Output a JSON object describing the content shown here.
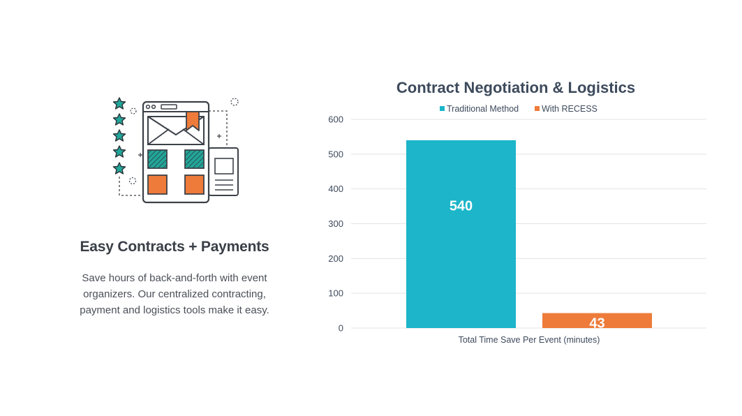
{
  "feature": {
    "icon": "contract-document-illustration",
    "title": "Easy Contracts + Payments",
    "description": "Save hours of back-and-forth with event organizers. Our centralized contracting, payment and logistics tools make it easy."
  },
  "colors": {
    "teal": "#1cb5c9",
    "orange": "#ee7b3a",
    "star_teal": "#22a699",
    "outline": "#3c4148",
    "grid": "#e3e3e3"
  },
  "chart_data": {
    "type": "bar",
    "title": "Contract Negotiation & Logistics",
    "categories": [
      "Total Time Save Per Event (minutes)"
    ],
    "xlabel": "Total Time Save Per Event (minutes)",
    "ylabel": "",
    "ylim": [
      0,
      600
    ],
    "yticks": [
      0,
      100,
      200,
      300,
      400,
      500,
      600
    ],
    "grid": true,
    "legend_position": "top",
    "series": [
      {
        "name": "Traditional Method",
        "values": [
          540
        ],
        "color": "#1cb5c9",
        "data_label": "540"
      },
      {
        "name": "With RECESS",
        "values": [
          43
        ],
        "color": "#ee7b3a",
        "data_label": "43"
      }
    ]
  }
}
